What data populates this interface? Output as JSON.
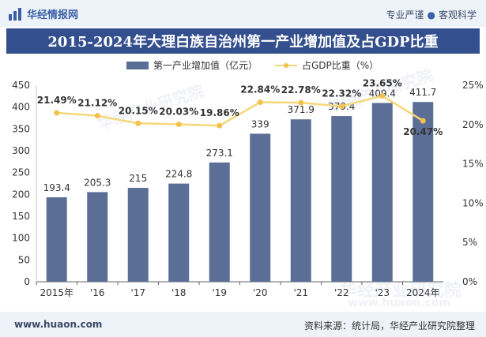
{
  "header": {
    "logo_text": "华经情报网",
    "tagline_left": "专业严谨",
    "tagline_right": "客观科学"
  },
  "watermarks": [
    "华经产业研究院",
    "华经产业研究院",
    "华经产业研究院",
    "www.huaon.com"
  ],
  "colors": {
    "bar": "#5b6f96",
    "line": "#f5d778",
    "marker": "#f2c14e",
    "title_bg": "#334f8e",
    "header_bg": "#eef3f9"
  },
  "chart_data": {
    "type": "bar",
    "title": "2015-2024年大理白族自治州第一产业增加值及占GDP比重",
    "categories": [
      "2015年",
      "'16",
      "'17",
      "'18",
      "'19",
      "'20",
      "'21",
      "'22",
      "'23",
      "2024年"
    ],
    "series": [
      {
        "name": "第一产业增加值（亿元）",
        "type": "bar",
        "axis": "left",
        "values": [
          193.4,
          205.3,
          215,
          224.8,
          273.1,
          339,
          371.9,
          379.4,
          409.4,
          411.7
        ],
        "labels": [
          "193.4",
          "205.3",
          "215",
          "224.8",
          "273.1",
          "339",
          "371.9",
          "379.4",
          "409.4",
          "411.7"
        ]
      },
      {
        "name": "占GDP比重（%）",
        "type": "line",
        "axis": "right",
        "values": [
          21.49,
          21.12,
          20.15,
          20.03,
          19.86,
          22.84,
          22.78,
          22.32,
          23.65,
          20.47
        ],
        "labels": [
          "21.49%",
          "21.12%",
          "20.15%",
          "20.03%",
          "19.86%",
          "22.84%",
          "22.78%",
          "22.32%",
          "23.65%",
          "20.47%"
        ]
      }
    ],
    "y_left": {
      "min": 0,
      "max": 450,
      "ticks": [
        "0",
        "50",
        "100",
        "150",
        "200",
        "250",
        "300",
        "350",
        "400",
        "450"
      ]
    },
    "y_right": {
      "min": 0,
      "max": 25,
      "ticks": [
        "0%",
        "5%",
        "10%",
        "15%",
        "20%",
        "25%"
      ]
    },
    "legend_position": "top-center",
    "grid": false
  },
  "footer": {
    "website": "www.huaon.com",
    "source": "资料来源：统计局，华经产业研究院整理"
  }
}
